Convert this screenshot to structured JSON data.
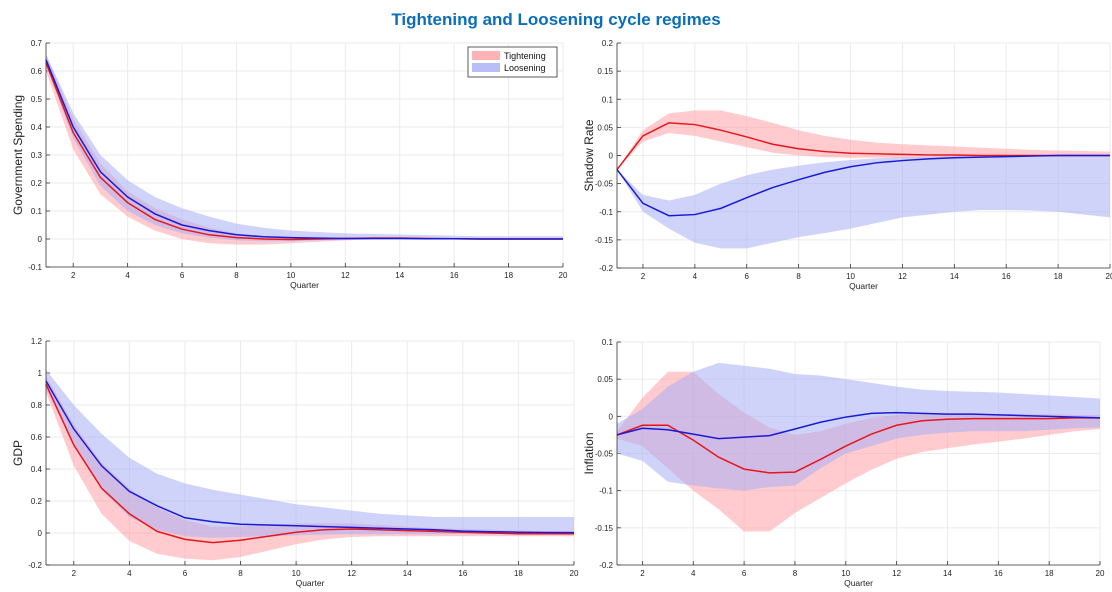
{
  "title": "Tightening and Loosening cycle regimes",
  "colors": {
    "tightening_line": "#e8161b",
    "tightening_band": "#ffa0a5",
    "loosening_line": "#1a1ad6",
    "loosening_band": "#a8aef5",
    "title": "#0a6eb8"
  },
  "legend": {
    "tightening": "Tightening",
    "loosening": "Loosening",
    "placement": "top-right"
  },
  "chart_data": [
    {
      "type": "line",
      "ylabel": "Government Spending",
      "xlabel": "Quarter",
      "xlim": [
        1,
        20
      ],
      "ylim": [
        -0.1,
        0.7
      ],
      "xticks": [
        2,
        4,
        6,
        8,
        10,
        12,
        14,
        16,
        18,
        20
      ],
      "yticks": [
        -0.1,
        0,
        0.1,
        0.2,
        0.3,
        0.4,
        0.5,
        0.6,
        0.7
      ],
      "ytick_labels": [
        "-0.1",
        "0",
        "0.1",
        "0.2",
        "0.3",
        "0.4",
        "0.5",
        "0.6",
        "0.7"
      ],
      "grid": true,
      "legend": true,
      "x": [
        1,
        2,
        3,
        4,
        5,
        6,
        7,
        8,
        9,
        10,
        11,
        12,
        13,
        14,
        15,
        16,
        17,
        18,
        19,
        20
      ],
      "series": [
        {
          "name": "Tightening",
          "values": [
            0.63,
            0.38,
            0.22,
            0.13,
            0.07,
            0.035,
            0.015,
            0.005,
            0.0,
            -0.002,
            0.0,
            0.002,
            0.003,
            0.003,
            0.002,
            0.001,
            0.0,
            0.0,
            0.0,
            0.0
          ],
          "lower": [
            0.6,
            0.32,
            0.16,
            0.08,
            0.03,
            0.0,
            -0.015,
            -0.02,
            -0.02,
            -0.015,
            -0.01,
            -0.005,
            -0.002,
            0.0,
            0.0,
            0.0,
            0.0,
            0.0,
            0.0,
            0.0
          ],
          "upper": [
            0.66,
            0.43,
            0.27,
            0.17,
            0.11,
            0.07,
            0.04,
            0.02,
            0.01,
            0.005,
            0.005,
            0.006,
            0.007,
            0.007,
            0.006,
            0.005,
            0.004,
            0.003,
            0.003,
            0.003
          ]
        },
        {
          "name": "Loosening",
          "values": [
            0.64,
            0.4,
            0.24,
            0.15,
            0.09,
            0.05,
            0.03,
            0.015,
            0.008,
            0.005,
            0.003,
            0.002,
            0.002,
            0.002,
            0.001,
            0.001,
            0.0,
            0.0,
            0.0,
            0.0
          ],
          "lower": [
            0.62,
            0.36,
            0.19,
            0.1,
            0.05,
            0.02,
            0.005,
            -0.005,
            -0.008,
            -0.008,
            -0.005,
            -0.003,
            -0.002,
            -0.002,
            -0.002,
            -0.002,
            -0.002,
            -0.002,
            -0.002,
            -0.002
          ],
          "upper": [
            0.66,
            0.45,
            0.3,
            0.21,
            0.15,
            0.11,
            0.08,
            0.055,
            0.04,
            0.03,
            0.025,
            0.02,
            0.018,
            0.016,
            0.014,
            0.012,
            0.01,
            0.01,
            0.01,
            0.01
          ]
        }
      ]
    },
    {
      "type": "line",
      "ylabel": "Shadow Rate",
      "xlabel": "Quarter",
      "xlim": [
        1,
        20
      ],
      "ylim": [
        -0.2,
        0.2
      ],
      "xticks": [
        2,
        4,
        6,
        8,
        10,
        12,
        14,
        16,
        18,
        20
      ],
      "yticks": [
        -0.2,
        -0.15,
        -0.1,
        -0.05,
        0,
        0.05,
        0.1,
        0.15,
        0.2
      ],
      "ytick_labels": [
        "-0.2",
        "-0.15",
        "-0.1",
        "-0.05",
        "0",
        "0.05",
        "0.1",
        "0.15",
        "0.2"
      ],
      "grid": true,
      "legend": false,
      "x": [
        1,
        2,
        3,
        4,
        5,
        6,
        7,
        8,
        9,
        10,
        11,
        12,
        13,
        14,
        15,
        16,
        17,
        18,
        19,
        20
      ],
      "series": [
        {
          "name": "Tightening",
          "values": [
            -0.025,
            0.035,
            0.058,
            0.055,
            0.045,
            0.033,
            0.02,
            0.012,
            0.007,
            0.004,
            0.003,
            0.002,
            0.001,
            0.001,
            0.0,
            0.0,
            0.0,
            0.0,
            0.0,
            0.0
          ],
          "lower": [
            -0.025,
            0.025,
            0.04,
            0.035,
            0.025,
            0.015,
            0.005,
            0.0,
            -0.003,
            -0.004,
            -0.004,
            -0.004,
            -0.003,
            -0.003,
            -0.002,
            -0.002,
            -0.002,
            -0.001,
            -0.001,
            -0.001
          ],
          "upper": [
            -0.025,
            0.045,
            0.075,
            0.08,
            0.08,
            0.07,
            0.058,
            0.045,
            0.035,
            0.028,
            0.023,
            0.02,
            0.018,
            0.016,
            0.014,
            0.012,
            0.01,
            0.009,
            0.008,
            0.007
          ]
        },
        {
          "name": "Loosening",
          "values": [
            -0.025,
            -0.085,
            -0.107,
            -0.105,
            -0.094,
            -0.075,
            -0.057,
            -0.043,
            -0.03,
            -0.02,
            -0.013,
            -0.009,
            -0.006,
            -0.004,
            -0.003,
            -0.002,
            -0.001,
            0.0,
            0.0,
            0.0
          ],
          "lower": [
            -0.025,
            -0.1,
            -0.13,
            -0.155,
            -0.165,
            -0.165,
            -0.155,
            -0.145,
            -0.138,
            -0.13,
            -0.12,
            -0.11,
            -0.105,
            -0.1,
            -0.097,
            -0.097,
            -0.098,
            -0.1,
            -0.105,
            -0.11
          ],
          "upper": [
            -0.025,
            -0.07,
            -0.08,
            -0.07,
            -0.05,
            -0.035,
            -0.025,
            -0.018,
            -0.012,
            -0.008,
            -0.005,
            -0.003,
            -0.002,
            -0.001,
            0.0,
            0.0,
            0.0,
            0.0,
            0.0,
            0.0
          ]
        }
      ]
    },
    {
      "type": "line",
      "ylabel": "GDP",
      "xlabel": "Quarter",
      "xlim": [
        1,
        20
      ],
      "ylim": [
        -0.2,
        1.2
      ],
      "xticks": [
        2,
        4,
        6,
        8,
        10,
        12,
        14,
        16,
        18,
        20
      ],
      "yticks": [
        -0.2,
        0,
        0.2,
        0.4,
        0.6,
        0.8,
        1,
        1.2
      ],
      "ytick_labels": [
        "-0.2",
        "0",
        "0.2",
        "0.4",
        "0.6",
        "0.8",
        "1",
        "1.2"
      ],
      "grid": true,
      "legend": false,
      "x": [
        1,
        2,
        3,
        4,
        5,
        6,
        7,
        8,
        9,
        10,
        11,
        12,
        13,
        14,
        15,
        16,
        17,
        18,
        19,
        20
      ],
      "series": [
        {
          "name": "Tightening",
          "values": [
            0.93,
            0.55,
            0.28,
            0.12,
            0.01,
            -0.04,
            -0.06,
            -0.045,
            -0.02,
            0.005,
            0.02,
            0.025,
            0.02,
            0.015,
            0.01,
            0.005,
            0.0,
            -0.005,
            -0.005,
            -0.005
          ],
          "lower": [
            0.88,
            0.42,
            0.12,
            -0.05,
            -0.13,
            -0.16,
            -0.17,
            -0.15,
            -0.11,
            -0.07,
            -0.04,
            -0.025,
            -0.02,
            -0.02,
            -0.02,
            -0.02,
            -0.02,
            -0.02,
            -0.02,
            -0.02
          ],
          "upper": [
            0.98,
            0.68,
            0.44,
            0.28,
            0.16,
            0.08,
            0.04,
            0.04,
            0.05,
            0.06,
            0.06,
            0.06,
            0.05,
            0.04,
            0.03,
            0.025,
            0.02,
            0.015,
            0.01,
            0.01
          ]
        },
        {
          "name": "Loosening",
          "values": [
            0.95,
            0.65,
            0.42,
            0.26,
            0.17,
            0.095,
            0.07,
            0.055,
            0.05,
            0.045,
            0.04,
            0.035,
            0.03,
            0.025,
            0.02,
            0.012,
            0.008,
            0.005,
            0.003,
            0.002
          ],
          "lower": [
            0.9,
            0.55,
            0.27,
            0.1,
            0.02,
            -0.02,
            -0.03,
            -0.025,
            -0.02,
            -0.015,
            -0.01,
            -0.008,
            -0.008,
            -0.008,
            -0.008,
            -0.008,
            -0.008,
            -0.008,
            -0.008,
            -0.008
          ],
          "upper": [
            1.02,
            0.8,
            0.62,
            0.47,
            0.37,
            0.31,
            0.27,
            0.24,
            0.21,
            0.18,
            0.16,
            0.14,
            0.12,
            0.11,
            0.1,
            0.1,
            0.1,
            0.1,
            0.1,
            0.1
          ]
        }
      ]
    },
    {
      "type": "line",
      "ylabel": "Inflation",
      "xlabel": "Quarter",
      "xlim": [
        1,
        20
      ],
      "ylim": [
        -0.2,
        0.1
      ],
      "xticks": [
        2,
        4,
        6,
        8,
        10,
        12,
        14,
        16,
        18,
        20
      ],
      "yticks": [
        -0.2,
        -0.15,
        -0.1,
        -0.05,
        0,
        0.05,
        0.1
      ],
      "ytick_labels": [
        "-0.2",
        "-0.15",
        "-0.1",
        "-0.05",
        "0",
        "0.05",
        "0.1"
      ],
      "grid": true,
      "legend": false,
      "x": [
        1,
        2,
        3,
        4,
        5,
        6,
        7,
        8,
        9,
        10,
        11,
        12,
        13,
        14,
        15,
        16,
        17,
        18,
        19,
        20
      ],
      "series": [
        {
          "name": "Tightening",
          "values": [
            -0.025,
            -0.012,
            -0.012,
            -0.032,
            -0.055,
            -0.071,
            -0.076,
            -0.075,
            -0.058,
            -0.04,
            -0.024,
            -0.012,
            -0.006,
            -0.004,
            -0.003,
            -0.003,
            -0.003,
            -0.003,
            -0.002,
            -0.002
          ],
          "lower": [
            -0.03,
            -0.04,
            -0.07,
            -0.1,
            -0.125,
            -0.155,
            -0.155,
            -0.13,
            -0.11,
            -0.09,
            -0.072,
            -0.057,
            -0.048,
            -0.043,
            -0.038,
            -0.034,
            -0.03,
            -0.025,
            -0.02,
            -0.017
          ],
          "upper": [
            -0.02,
            0.025,
            0.06,
            0.06,
            0.03,
            0.005,
            -0.015,
            -0.025,
            -0.02,
            -0.01,
            -0.002,
            0.002,
            0.004,
            0.004,
            0.004,
            0.003,
            0.003,
            0.003,
            0.002,
            0.002
          ]
        },
        {
          "name": "Loosening",
          "values": [
            -0.025,
            -0.016,
            -0.018,
            -0.024,
            -0.03,
            -0.028,
            -0.026,
            -0.017,
            -0.008,
            -0.001,
            0.004,
            0.005,
            0.004,
            0.003,
            0.003,
            0.002,
            0.001,
            0.0,
            -0.001,
            -0.002
          ],
          "lower": [
            -0.05,
            -0.06,
            -0.088,
            -0.093,
            -0.097,
            -0.1,
            -0.095,
            -0.093,
            -0.07,
            -0.05,
            -0.04,
            -0.03,
            -0.025,
            -0.022,
            -0.02,
            -0.02,
            -0.02,
            -0.018,
            -0.016,
            -0.015
          ],
          "upper": [
            -0.01,
            0.01,
            0.04,
            0.06,
            0.072,
            0.068,
            0.064,
            0.057,
            0.055,
            0.05,
            0.045,
            0.04,
            0.036,
            0.034,
            0.033,
            0.032,
            0.03,
            0.028,
            0.026,
            0.024
          ]
        }
      ]
    }
  ]
}
